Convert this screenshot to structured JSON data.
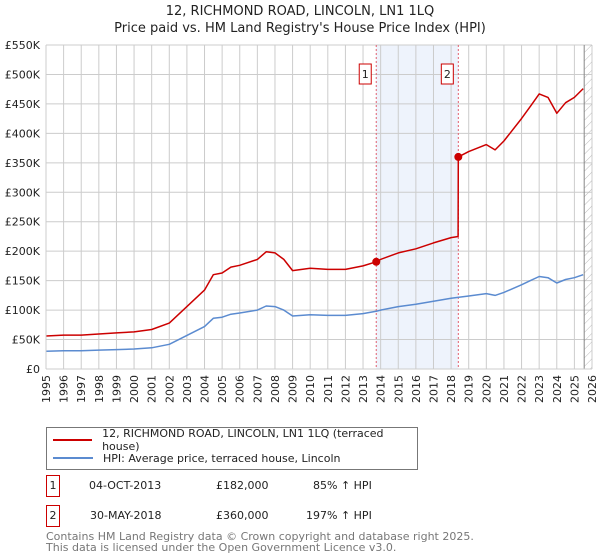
{
  "title": "12, RICHMOND ROAD, LINCOLN, LN1 1LQ",
  "subtitle": "Price paid vs. HM Land Registry's House Price Index (HPI)",
  "chart_data": {
    "type": "line",
    "title": "12, RICHMOND ROAD, LINCOLN, LN1 1LQ",
    "subtitle": "Price paid vs. HM Land Registry's House Price Index (HPI)",
    "xlim": [
      1995,
      2026
    ],
    "ylim": [
      0,
      550000
    ],
    "grid": true,
    "x_ticks": [
      "1995",
      "1996",
      "1997",
      "1998",
      "1999",
      "2000",
      "2001",
      "2002",
      "2003",
      "2004",
      "2005",
      "2006",
      "2007",
      "2008",
      "2009",
      "2010",
      "2011",
      "2012",
      "2013",
      "2014",
      "2015",
      "2016",
      "2017",
      "2018",
      "2019",
      "2020",
      "2021",
      "2022",
      "2023",
      "2024",
      "2025",
      "2026"
    ],
    "y_ticks": [
      {
        "value": 0,
        "label": "£0"
      },
      {
        "value": 50000,
        "label": "£50K"
      },
      {
        "value": 100000,
        "label": "£100K"
      },
      {
        "value": 150000,
        "label": "£150K"
      },
      {
        "value": 200000,
        "label": "£200K"
      },
      {
        "value": 250000,
        "label": "£250K"
      },
      {
        "value": 300000,
        "label": "£300K"
      },
      {
        "value": 350000,
        "label": "£350K"
      },
      {
        "value": 400000,
        "label": "£400K"
      },
      {
        "value": 450000,
        "label": "£450K"
      },
      {
        "value": 500000,
        "label": "£500K"
      },
      {
        "value": 550000,
        "label": "£550K"
      }
    ],
    "series": [
      {
        "name": "12, RICHMOND ROAD, LINCOLN, LN1 1LQ (terraced house)",
        "color": "#cc0000",
        "x": [
          1995,
          1996,
          1997,
          1998,
          1999,
          2000,
          2001,
          2002,
          2003,
          2004,
          2004.5,
          2005,
          2005.5,
          2006,
          2007,
          2007.5,
          2008,
          2008.5,
          2009,
          2010,
          2011,
          2012,
          2013,
          2013.75,
          2014,
          2015,
          2016,
          2017,
          2018,
          2018.4,
          2018.41,
          2019,
          2020,
          2020.5,
          2021,
          2022,
          2022.5,
          2023,
          2023.5,
          2024,
          2024.5,
          2025,
          2025.5
        ],
        "y": [
          56000,
          57600,
          57600,
          59400,
          61300,
          63000,
          67000,
          78000,
          106000,
          134000,
          160000,
          163000,
          173000,
          176000,
          186000,
          199000,
          197000,
          186000,
          167000,
          171000,
          169000,
          169000,
          175000,
          182000,
          186000,
          197000,
          204000,
          214000,
          223000,
          225000,
          360000,
          369000,
          381000,
          372000,
          387000,
          425000,
          446000,
          467000,
          461000,
          434000,
          452000,
          461000,
          476000
        ]
      },
      {
        "name": "HPI: Average price, terraced house, Lincoln",
        "color": "#5b8bd0",
        "x": [
          1995,
          1996,
          1997,
          1998,
          1999,
          2000,
          2001,
          2002,
          2003,
          2004,
          2004.5,
          2005,
          2005.5,
          2006,
          2007,
          2007.5,
          2008,
          2008.5,
          2009,
          2010,
          2011,
          2012,
          2013,
          2013.75,
          2014,
          2015,
          2016,
          2017,
          2018,
          2019,
          2020,
          2020.5,
          2021,
          2022,
          2022.5,
          2023,
          2023.5,
          2024,
          2024.5,
          2025,
          2025.5
        ],
        "y": [
          30000,
          31000,
          31000,
          32000,
          33000,
          34000,
          36000,
          42000,
          57000,
          72000,
          86000,
          88000,
          93000,
          95000,
          100000,
          107000,
          106000,
          100000,
          90000,
          92000,
          91000,
          91000,
          94000,
          98000,
          100000,
          106000,
          110000,
          115000,
          120000,
          124000,
          128000,
          125000,
          130000,
          143000,
          150000,
          157000,
          155000,
          146000,
          152000,
          155000,
          160000
        ]
      }
    ],
    "sales": [
      {
        "label": "1",
        "x": 2013.75,
        "y": 182000,
        "date": "04-OCT-2013",
        "price": "£182,000",
        "hpi": "85% ↑ HPI"
      },
      {
        "label": "2",
        "x": 2018.41,
        "y": 360000,
        "date": "30-MAY-2018",
        "price": "£360,000",
        "hpi": "197% ↑ HPI"
      }
    ],
    "forecast_start": 2025.5,
    "legend_placement": "below"
  },
  "footer": {
    "line1": "Contains HM Land Registry data © Crown copyright and database right 2025.",
    "line2": "This data is licensed under the Open Government Licence v3.0."
  }
}
